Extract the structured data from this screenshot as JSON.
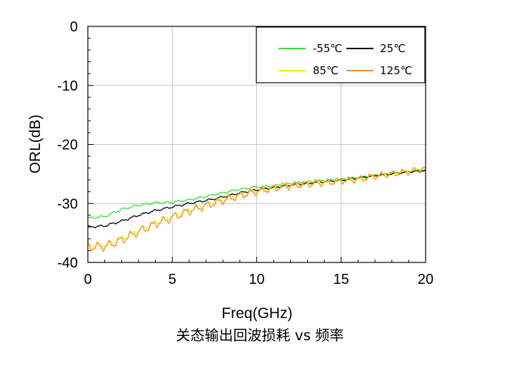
{
  "chart_data": {
    "type": "line",
    "xlabel": "Freq(GHz)",
    "ylabel": "ORL(dB)",
    "caption": "关态输出回波损耗 vs 频率",
    "xlim": [
      0,
      20
    ],
    "ylim": [
      -40,
      0
    ],
    "xticks": [
      0,
      5,
      10,
      15,
      20
    ],
    "yticks": [
      0,
      -10,
      -20,
      -30,
      -40
    ],
    "grid": true,
    "legend_position": "top-right",
    "x": [
      0,
      1,
      2,
      3,
      4,
      5,
      6,
      7,
      8,
      9,
      10,
      11,
      12,
      13,
      14,
      15,
      16,
      17,
      18,
      19,
      20
    ],
    "series": [
      {
        "name": "-55℃",
        "color": "#33e233",
        "values": [
          -32.5,
          -32.2,
          -31.0,
          -30.3,
          -29.9,
          -29.8,
          -29.4,
          -28.8,
          -28.2,
          -27.6,
          -27.2,
          -27.0,
          -26.6,
          -26.3,
          -26.1,
          -25.9,
          -25.6,
          -25.2,
          -24.9,
          -24.6,
          -24.2
        ]
      },
      {
        "name": "25℃",
        "color": "#000000",
        "values": [
          -34.0,
          -33.8,
          -33.0,
          -32.0,
          -31.2,
          -30.6,
          -30.0,
          -29.5,
          -28.9,
          -28.2,
          -27.7,
          -27.3,
          -26.9,
          -26.6,
          -26.3,
          -26.1,
          -25.7,
          -25.3,
          -25.0,
          -24.7,
          -24.4
        ]
      },
      {
        "name": "85℃",
        "color": "#f0f000",
        "values": [
          -37.0,
          -37.2,
          -36.0,
          -34.6,
          -33.3,
          -32.2,
          -31.1,
          -30.2,
          -29.4,
          -28.6,
          -27.9,
          -27.3,
          -26.9,
          -26.6,
          -26.4,
          -26.2,
          -25.8,
          -25.3,
          -24.9,
          -24.5,
          -24.0
        ]
      },
      {
        "name": "125℃",
        "color": "#f09030",
        "values": [
          -37.4,
          -37.3,
          -36.2,
          -34.8,
          -33.5,
          -32.4,
          -31.3,
          -30.4,
          -29.5,
          -28.7,
          -28.0,
          -27.4,
          -27.0,
          -26.7,
          -26.5,
          -26.2,
          -25.9,
          -25.4,
          -25.0,
          -24.6,
          -24.2
        ]
      }
    ],
    "ripple_db": [
      0.15,
      0.15,
      0.4,
      0.6
    ]
  }
}
